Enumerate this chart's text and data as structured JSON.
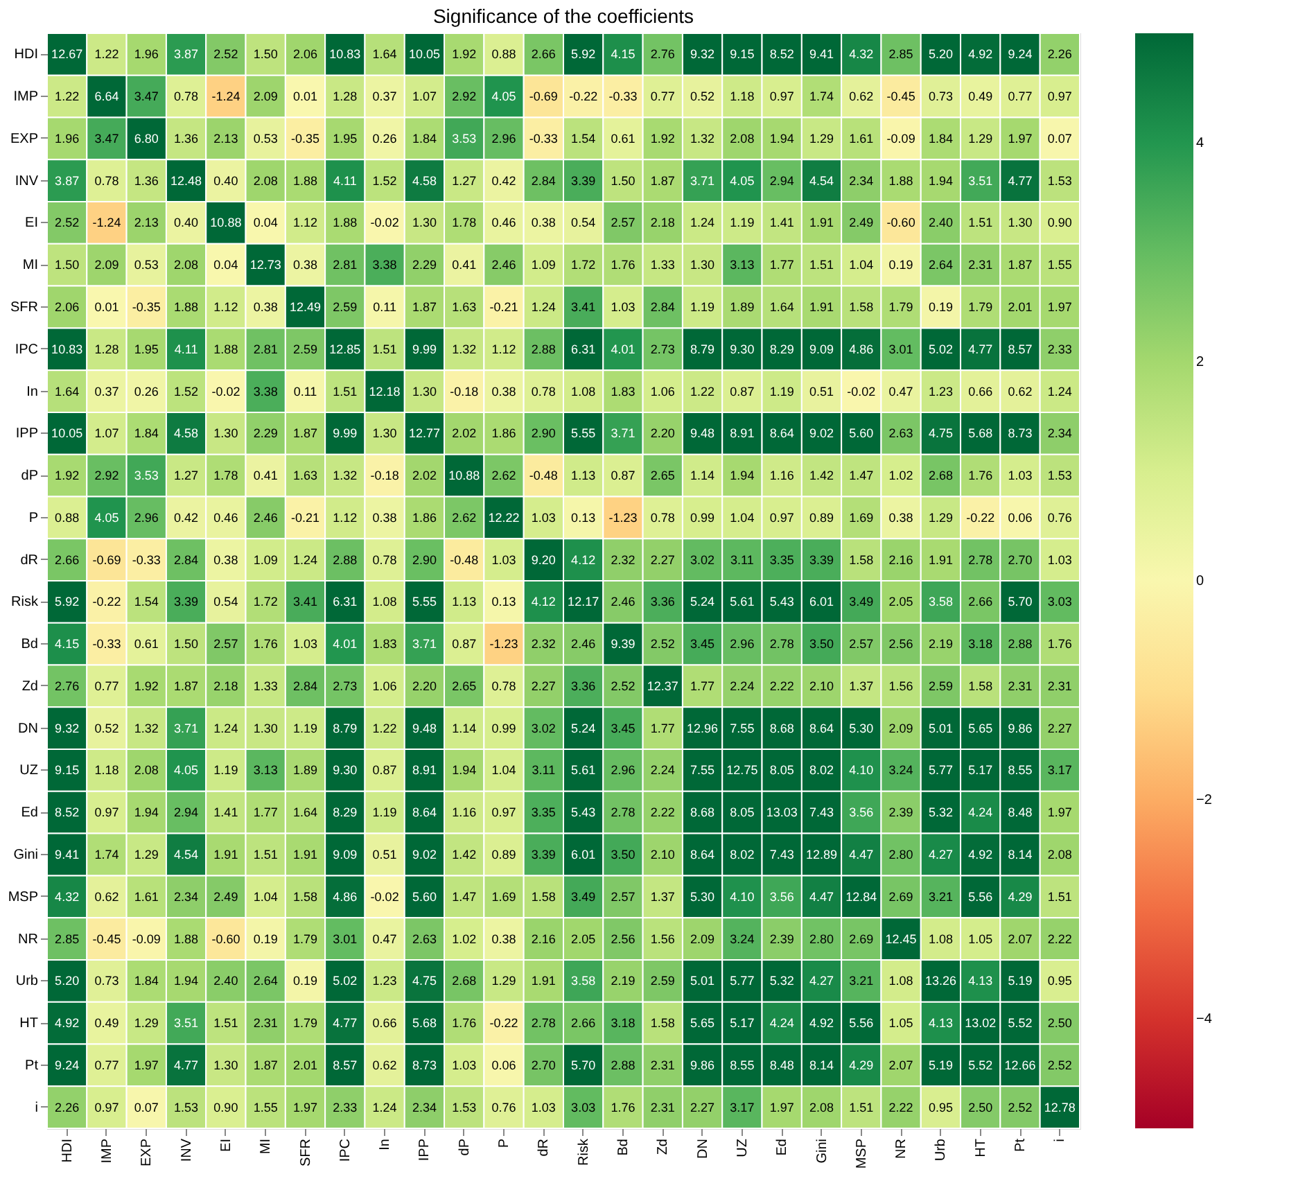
{
  "chart_data": {
    "type": "heatmap",
    "title": "Significance of the coefficients",
    "categories": [
      "HDI",
      "IMP",
      "EXP",
      "INV",
      "EI",
      "MI",
      "SFR",
      "IPC",
      "In",
      "IPP",
      "dP",
      "P",
      "dR",
      "Risk",
      "Bd",
      "Zd",
      "DN",
      "UZ",
      "Ed",
      "Gini",
      "MSP",
      "NR",
      "Urb",
      "HT",
      "Pt",
      "i"
    ],
    "y_categories": [
      "HDI",
      "IMP",
      "EXP",
      "INV",
      "EI",
      "MI",
      "SFR",
      "IPC",
      "In",
      "IPP",
      "dP",
      "P",
      "dR",
      "Risk",
      "Bd",
      "Zd",
      "DN",
      "UZ",
      "Ed",
      "Gini",
      "MSP",
      "NR",
      "Urb",
      "HT",
      "Pt",
      "i"
    ],
    "cells": [
      [
        12.67,
        1.22,
        1.96,
        3.87,
        2.52,
        1.5,
        2.06,
        10.83,
        1.64,
        10.05,
        1.92,
        0.88,
        2.66,
        5.92,
        4.15,
        2.76,
        9.32,
        9.15,
        8.52,
        9.41,
        4.32,
        2.85,
        5.2,
        4.92,
        9.24,
        2.26
      ],
      [
        1.22,
        6.64,
        3.47,
        0.78,
        -1.24,
        2.09,
        0.01,
        1.28,
        0.37,
        1.07,
        2.92,
        4.05,
        -0.69,
        -0.22,
        -0.33,
        0.77,
        0.52,
        1.18,
        0.97,
        1.74,
        0.62,
        -0.45,
        0.73,
        0.49,
        0.77,
        0.97
      ],
      [
        1.96,
        3.47,
        6.8,
        1.36,
        2.13,
        0.53,
        -0.35,
        1.95,
        0.26,
        1.84,
        3.53,
        2.96,
        -0.33,
        1.54,
        0.61,
        1.92,
        1.32,
        2.08,
        1.94,
        1.29,
        1.61,
        -0.09,
        1.84,
        1.29,
        1.97,
        0.07
      ],
      [
        3.87,
        0.78,
        1.36,
        12.48,
        0.4,
        2.08,
        1.88,
        4.11,
        1.52,
        4.58,
        1.27,
        0.42,
        2.84,
        3.39,
        1.5,
        1.87,
        3.71,
        4.05,
        2.94,
        4.54,
        2.34,
        1.88,
        1.94,
        3.51,
        4.77,
        1.53
      ],
      [
        2.52,
        -1.24,
        2.13,
        0.4,
        10.88,
        0.04,
        1.12,
        1.88,
        -0.02,
        1.3,
        1.78,
        0.46,
        0.38,
        0.54,
        2.57,
        2.18,
        1.24,
        1.19,
        1.41,
        1.91,
        2.49,
        -0.6,
        2.4,
        1.51,
        1.3,
        0.9
      ],
      [
        1.5,
        2.09,
        0.53,
        2.08,
        0.04,
        12.73,
        0.38,
        2.81,
        3.38,
        2.29,
        0.41,
        2.46,
        1.09,
        1.72,
        1.76,
        1.33,
        1.3,
        3.13,
        1.77,
        1.51,
        1.04,
        0.19,
        2.64,
        2.31,
        1.87,
        1.55
      ],
      [
        2.06,
        0.01,
        -0.35,
        1.88,
        1.12,
        0.38,
        12.49,
        2.59,
        0.11,
        1.87,
        1.63,
        -0.21,
        1.24,
        3.41,
        1.03,
        2.84,
        1.19,
        1.89,
        1.64,
        1.91,
        1.58,
        1.79,
        0.19,
        1.79,
        2.01,
        1.97
      ],
      [
        10.83,
        1.28,
        1.95,
        4.11,
        1.88,
        2.81,
        2.59,
        12.85,
        1.51,
        9.99,
        1.32,
        1.12,
        2.88,
        6.31,
        4.01,
        2.73,
        8.79,
        9.3,
        8.29,
        9.09,
        4.86,
        3.01,
        5.02,
        4.77,
        8.57,
        2.33
      ],
      [
        1.64,
        0.37,
        0.26,
        1.52,
        -0.02,
        3.38,
        0.11,
        1.51,
        12.18,
        1.3,
        -0.18,
        0.38,
        0.78,
        1.08,
        1.83,
        1.06,
        1.22,
        0.87,
        1.19,
        0.51,
        -0.02,
        0.47,
        1.23,
        0.66,
        0.62,
        1.24
      ],
      [
        10.05,
        1.07,
        1.84,
        4.58,
        1.3,
        2.29,
        1.87,
        9.99,
        1.3,
        12.77,
        2.02,
        1.86,
        2.9,
        5.55,
        3.71,
        2.2,
        9.48,
        8.91,
        8.64,
        9.02,
        5.6,
        2.63,
        4.75,
        5.68,
        8.73,
        2.34
      ],
      [
        1.92,
        2.92,
        3.53,
        1.27,
        1.78,
        0.41,
        1.63,
        1.32,
        -0.18,
        2.02,
        10.88,
        2.62,
        -0.48,
        1.13,
        0.87,
        2.65,
        1.14,
        1.94,
        1.16,
        1.42,
        1.47,
        1.02,
        2.68,
        1.76,
        1.03,
        1.53
      ],
      [
        0.88,
        4.05,
        2.96,
        0.42,
        0.46,
        2.46,
        -0.21,
        1.12,
        0.38,
        1.86,
        2.62,
        12.22,
        1.03,
        0.13,
        -1.23,
        0.78,
        0.99,
        1.04,
        0.97,
        0.89,
        1.69,
        0.38,
        1.29,
        -0.22,
        0.06,
        0.76
      ],
      [
        2.66,
        -0.69,
        -0.33,
        2.84,
        0.38,
        1.09,
        1.24,
        2.88,
        0.78,
        2.9,
        -0.48,
        1.03,
        9.2,
        4.12,
        2.32,
        2.27,
        3.02,
        3.11,
        3.35,
        3.39,
        1.58,
        2.16,
        1.91,
        2.78,
        2.7,
        1.03
      ],
      [
        5.92,
        -0.22,
        1.54,
        3.39,
        0.54,
        1.72,
        3.41,
        6.31,
        1.08,
        5.55,
        1.13,
        0.13,
        4.12,
        12.17,
        2.46,
        3.36,
        5.24,
        5.61,
        5.43,
        6.01,
        3.49,
        2.05,
        3.58,
        2.66,
        5.7,
        3.03
      ],
      [
        4.15,
        -0.33,
        0.61,
        1.5,
        2.57,
        1.76,
        1.03,
        4.01,
        1.83,
        3.71,
        0.87,
        -1.23,
        2.32,
        2.46,
        9.39,
        2.52,
        3.45,
        2.96,
        2.78,
        3.5,
        2.57,
        2.56,
        2.19,
        3.18,
        2.88,
        1.76
      ],
      [
        2.76,
        0.77,
        1.92,
        1.87,
        2.18,
        1.33,
        2.84,
        2.73,
        1.06,
        2.2,
        2.65,
        0.78,
        2.27,
        3.36,
        2.52,
        12.37,
        1.77,
        2.24,
        2.22,
        2.1,
        1.37,
        1.56,
        2.59,
        1.58,
        2.31,
        2.31
      ],
      [
        9.32,
        0.52,
        1.32,
        3.71,
        1.24,
        1.3,
        1.19,
        8.79,
        1.22,
        9.48,
        1.14,
        0.99,
        3.02,
        5.24,
        3.45,
        1.77,
        12.96,
        7.55,
        8.68,
        8.64,
        5.3,
        2.09,
        5.01,
        5.65,
        9.86,
        2.27
      ],
      [
        9.15,
        1.18,
        2.08,
        4.05,
        1.19,
        3.13,
        1.89,
        9.3,
        0.87,
        8.91,
        1.94,
        1.04,
        3.11,
        5.61,
        2.96,
        2.24,
        7.55,
        12.75,
        8.05,
        8.02,
        4.1,
        3.24,
        5.77,
        5.17,
        8.55,
        3.17
      ],
      [
        8.52,
        0.97,
        1.94,
        2.94,
        1.41,
        1.77,
        1.64,
        8.29,
        1.19,
        8.64,
        1.16,
        0.97,
        3.35,
        5.43,
        2.78,
        2.22,
        8.68,
        8.05,
        13.03,
        7.43,
        3.56,
        2.39,
        5.32,
        4.24,
        8.48,
        1.97
      ],
      [
        9.41,
        1.74,
        1.29,
        4.54,
        1.91,
        1.51,
        1.91,
        9.09,
        0.51,
        9.02,
        1.42,
        0.89,
        3.39,
        6.01,
        3.5,
        2.1,
        8.64,
        8.02,
        7.43,
        12.89,
        4.47,
        2.8,
        4.27,
        4.92,
        8.14,
        2.08
      ],
      [
        4.32,
        0.62,
        1.61,
        2.34,
        2.49,
        1.04,
        1.58,
        4.86,
        -0.02,
        5.6,
        1.47,
        1.69,
        1.58,
        3.49,
        2.57,
        1.37,
        5.3,
        4.1,
        3.56,
        4.47,
        12.84,
        2.69,
        3.21,
        5.56,
        4.29,
        1.51
      ],
      [
        2.85,
        -0.45,
        -0.09,
        1.88,
        -0.6,
        0.19,
        1.79,
        3.01,
        0.47,
        2.63,
        1.02,
        0.38,
        2.16,
        2.05,
        2.56,
        1.56,
        2.09,
        3.24,
        2.39,
        2.8,
        2.69,
        12.45,
        1.08,
        1.05,
        2.07,
        2.22
      ],
      [
        5.2,
        0.73,
        1.84,
        1.94,
        2.4,
        2.64,
        0.19,
        5.02,
        1.23,
        4.75,
        2.68,
        1.29,
        1.91,
        3.58,
        2.19,
        2.59,
        5.01,
        5.77,
        5.32,
        4.27,
        3.21,
        1.08,
        13.26,
        4.13,
        5.19,
        0.95
      ],
      [
        4.92,
        0.49,
        1.29,
        3.51,
        1.51,
        2.31,
        1.79,
        4.77,
        0.66,
        5.68,
        1.76,
        -0.22,
        2.78,
        2.66,
        3.18,
        1.58,
        5.65,
        5.17,
        4.24,
        4.92,
        5.56,
        1.05,
        4.13,
        13.02,
        5.52,
        2.5
      ],
      [
        9.24,
        0.77,
        1.97,
        4.77,
        1.3,
        1.87,
        2.01,
        8.57,
        0.62,
        8.73,
        1.03,
        0.06,
        2.7,
        5.7,
        2.88,
        2.31,
        9.86,
        8.55,
        8.48,
        8.14,
        4.29,
        2.07,
        5.19,
        5.52,
        12.66,
        2.52
      ],
      [
        2.26,
        0.97,
        0.07,
        1.53,
        0.9,
        1.55,
        1.97,
        2.33,
        1.24,
        2.34,
        1.53,
        0.76,
        1.03,
        3.03,
        1.76,
        2.31,
        2.27,
        3.17,
        1.97,
        2.08,
        1.51,
        2.22,
        0.95,
        2.5,
        2.52,
        12.78
      ]
    ],
    "cell_labels": [
      [
        "12.67",
        "1.22",
        "1.96",
        "3.87",
        "2.52",
        "1.50",
        "2.06",
        "10.83",
        "1.64",
        "10.05",
        "1.92",
        "0.88",
        "2.66",
        "5.92",
        "4.15",
        "2.76",
        "9.32",
        "9.15",
        "8.52",
        "9.41",
        "4.32",
        "2.85",
        "5.20",
        "4.92",
        "9.24",
        "2.26"
      ],
      [
        "1.22",
        "6.64",
        "3.47",
        "0.78",
        "-1.24",
        "2.09",
        "0.01",
        "1.28",
        "0.37",
        "1.07",
        "2.92",
        "4.05",
        "-0.69",
        "-0.22",
        "-0.33",
        "0.77",
        "0.52",
        "1.18",
        "0.97",
        "1.74",
        "0.62",
        "-0.45",
        "0.73",
        "0.49",
        "0.77",
        "0.97"
      ],
      [
        "1.96",
        "3.47",
        "6.80",
        "1.36",
        "2.13",
        "0.53",
        "-0.35",
        "1.95",
        "0.26",
        "1.84",
        "3.53",
        "2.96",
        "-0.33",
        "1.54",
        "0.61",
        "1.92",
        "1.32",
        "2.08",
        "1.94",
        "1.29",
        "1.61",
        "-0.09",
        "1.84",
        "1.29",
        "1.97",
        "0.07"
      ],
      [
        "3.87",
        "0.78",
        "1.36",
        "12.48",
        "0.40",
        "2.08",
        "1.88",
        "4.11",
        "1.52",
        "4.58",
        "1.27",
        "0.42",
        "2.84",
        "3.39",
        "1.50",
        "1.87",
        "3.71",
        "4.05",
        "2.94",
        "4.54",
        "2.34",
        "1.88",
        "1.94",
        "3.51",
        "4.77",
        "1.53"
      ],
      [
        "2.52",
        "-1.24",
        "2.13",
        "0.40",
        "10.88",
        "0.04",
        "1.12",
        "1.88",
        "-0.02",
        "1.30",
        "1.78",
        "0.46",
        "0.38",
        "0.54",
        "2.57",
        "2.18",
        "1.24",
        "1.19",
        "1.41",
        "1.91",
        "2.49",
        "-0.60",
        "2.40",
        "1.51",
        "1.30",
        "0.90"
      ],
      [
        "1.50",
        "2.09",
        "0.53",
        "2.08",
        "0.04",
        "12.73",
        "0.38",
        "2.81",
        "3.38",
        "2.29",
        "0.41",
        "2.46",
        "1.09",
        "1.72",
        "1.76",
        "1.33",
        "1.30",
        "3.13",
        "1.77",
        "1.51",
        "1.04",
        "0.19",
        "2.64",
        "2.31",
        "1.87",
        "1.55"
      ],
      [
        "2.06",
        "0.01",
        "-0.35",
        "1.88",
        "1.12",
        "0.38",
        "12.49",
        "2.59",
        "0.11",
        "1.87",
        "1.63",
        "-0.21",
        "1.24",
        "3.41",
        "1.03",
        "2.84",
        "1.19",
        "1.89",
        "1.64",
        "1.91",
        "1.58",
        "1.79",
        "0.19",
        "1.79",
        "2.01",
        "1.97"
      ],
      [
        "10.83",
        "1.28",
        "1.95",
        "4.11",
        "1.88",
        "2.81",
        "2.59",
        "12.85",
        "1.51",
        "9.99",
        "1.32",
        "1.12",
        "2.88",
        "6.31",
        "4.01",
        "2.73",
        "8.79",
        "9.30",
        "8.29",
        "9.09",
        "4.86",
        "3.01",
        "5.02",
        "4.77",
        "8.57",
        "2.33"
      ],
      [
        "1.64",
        "0.37",
        "0.26",
        "1.52",
        "-0.02",
        "3.38",
        "0.11",
        "1.51",
        "12.18",
        "1.30",
        "-0.18",
        "0.38",
        "0.78",
        "1.08",
        "1.83",
        "1.06",
        "1.22",
        "0.87",
        "1.19",
        "0.51",
        "-0.02",
        "0.47",
        "1.23",
        "0.66",
        "0.62",
        "1.24"
      ],
      [
        "10.05",
        "1.07",
        "1.84",
        "4.58",
        "1.30",
        "2.29",
        "1.87",
        "9.99",
        "1.30",
        "12.77",
        "2.02",
        "1.86",
        "2.90",
        "5.55",
        "3.71",
        "2.20",
        "9.48",
        "8.91",
        "8.64",
        "9.02",
        "5.60",
        "2.63",
        "4.75",
        "5.68",
        "8.73",
        "2.34"
      ],
      [
        "1.92",
        "2.92",
        "3.53",
        "1.27",
        "1.78",
        "0.41",
        "1.63",
        "1.32",
        "-0.18",
        "2.02",
        "10.88",
        "2.62",
        "-0.48",
        "1.13",
        "0.87",
        "2.65",
        "1.14",
        "1.94",
        "1.16",
        "1.42",
        "1.47",
        "1.02",
        "2.68",
        "1.76",
        "1.03",
        "1.53"
      ],
      [
        "0.88",
        "4.05",
        "2.96",
        "0.42",
        "0.46",
        "2.46",
        "-0.21",
        "1.12",
        "0.38",
        "1.86",
        "2.62",
        "12.22",
        "1.03",
        "0.13",
        "-1.23",
        "0.78",
        "0.99",
        "1.04",
        "0.97",
        "0.89",
        "1.69",
        "0.38",
        "1.29",
        "-0.22",
        "0.06",
        "0.76"
      ],
      [
        "2.66",
        "-0.69",
        "-0.33",
        "2.84",
        "0.38",
        "1.09",
        "1.24",
        "2.88",
        "0.78",
        "2.90",
        "-0.48",
        "1.03",
        "9.20",
        "4.12",
        "2.32",
        "2.27",
        "3.02",
        "3.11",
        "3.35",
        "3.39",
        "1.58",
        "2.16",
        "1.91",
        "2.78",
        "2.70",
        "1.03"
      ],
      [
        "5.92",
        "-0.22",
        "1.54",
        "3.39",
        "0.54",
        "1.72",
        "3.41",
        "6.31",
        "1.08",
        "5.55",
        "1.13",
        "0.13",
        "4.12",
        "12.17",
        "2.46",
        "3.36",
        "5.24",
        "5.61",
        "5.43",
        "6.01",
        "3.49",
        "2.05",
        "3.58",
        "2.66",
        "5.70",
        "3.03"
      ],
      [
        "4.15",
        "-0.33",
        "0.61",
        "1.50",
        "2.57",
        "1.76",
        "1.03",
        "4.01",
        "1.83",
        "3.71",
        "0.87",
        "-1.23",
        "2.32",
        "2.46",
        "9.39",
        "2.52",
        "3.45",
        "2.96",
        "2.78",
        "3.50",
        "2.57",
        "2.56",
        "2.19",
        "3.18",
        "2.88",
        "1.76"
      ],
      [
        "2.76",
        "0.77",
        "1.92",
        "1.87",
        "2.18",
        "1.33",
        "2.84",
        "2.73",
        "1.06",
        "2.20",
        "2.65",
        "0.78",
        "2.27",
        "3.36",
        "2.52",
        "12.37",
        "1.77",
        "2.24",
        "2.22",
        "2.10",
        "1.37",
        "1.56",
        "2.59",
        "1.58",
        "2.31",
        "2.31"
      ],
      [
        "9.32",
        "0.52",
        "1.32",
        "3.71",
        "1.24",
        "1.30",
        "1.19",
        "8.79",
        "1.22",
        "9.48",
        "1.14",
        "0.99",
        "3.02",
        "5.24",
        "3.45",
        "1.77",
        "12.96",
        "7.55",
        "8.68",
        "8.64",
        "5.30",
        "2.09",
        "5.01",
        "5.65",
        "9.86",
        "2.27"
      ],
      [
        "9.15",
        "1.18",
        "2.08",
        "4.05",
        "1.19",
        "3.13",
        "1.89",
        "9.30",
        "0.87",
        "8.91",
        "1.94",
        "1.04",
        "3.11",
        "5.61",
        "2.96",
        "2.24",
        "7.55",
        "12.75",
        "8.05",
        "8.02",
        "4.10",
        "3.24",
        "5.77",
        "5.17",
        "8.55",
        "3.17"
      ],
      [
        "8.52",
        "0.97",
        "1.94",
        "2.94",
        "1.41",
        "1.77",
        "1.64",
        "8.29",
        "1.19",
        "8.64",
        "1.16",
        "0.97",
        "3.35",
        "5.43",
        "2.78",
        "2.22",
        "8.68",
        "8.05",
        "13.03",
        "7.43",
        "3.56",
        "2.39",
        "5.32",
        "4.24",
        "8.48",
        "1.97"
      ],
      [
        "9.41",
        "1.74",
        "1.29",
        "4.54",
        "1.91",
        "1.51",
        "1.91",
        "9.09",
        "0.51",
        "9.02",
        "1.42",
        "0.89",
        "3.39",
        "6.01",
        "3.50",
        "2.10",
        "8.64",
        "8.02",
        "7.43",
        "12.89",
        "4.47",
        "2.80",
        "4.27",
        "4.92",
        "8.14",
        "2.08"
      ],
      [
        "4.32",
        "0.62",
        "1.61",
        "2.34",
        "2.49",
        "1.04",
        "1.58",
        "4.86",
        "-0.02",
        "5.60",
        "1.47",
        "1.69",
        "1.58",
        "3.49",
        "2.57",
        "1.37",
        "5.30",
        "4.10",
        "3.56",
        "4.47",
        "12.84",
        "2.69",
        "3.21",
        "5.56",
        "4.29",
        "1.51"
      ],
      [
        "2.85",
        "-0.45",
        "-0.09",
        "1.88",
        "-0.60",
        "0.19",
        "1.79",
        "3.01",
        "0.47",
        "2.63",
        "1.02",
        "0.38",
        "2.16",
        "2.05",
        "2.56",
        "1.56",
        "2.09",
        "3.24",
        "2.39",
        "2.80",
        "2.69",
        "12.45",
        "1.08",
        "1.05",
        "2.07",
        "2.22"
      ],
      [
        "5.20",
        "0.73",
        "1.84",
        "1.94",
        "2.40",
        "2.64",
        "0.19",
        "5.02",
        "1.23",
        "4.75",
        "2.68",
        "1.29",
        "1.91",
        "3.58",
        "2.19",
        "2.59",
        "5.01",
        "5.77",
        "5.32",
        "4.27",
        "3.21",
        "1.08",
        "13.26",
        "4.13",
        "5.19",
        "0.95"
      ],
      [
        "4.92",
        "0.49",
        "1.29",
        "3.51",
        "1.51",
        "2.31",
        "1.79",
        "4.77",
        "0.66",
        "5.68",
        "1.76",
        "-0.22",
        "2.78",
        "2.66",
        "3.18",
        "1.58",
        "5.65",
        "5.17",
        "4.24",
        "4.92",
        "5.56",
        "1.05",
        "4.13",
        "13.02",
        "5.52",
        "2.50"
      ],
      [
        "9.24",
        "0.77",
        "1.97",
        "4.77",
        "1.30",
        "1.87",
        "2.01",
        "8.57",
        "0.62",
        "8.73",
        "1.03",
        "0.06",
        "2.70",
        "5.70",
        "2.88",
        "2.31",
        "9.86",
        "8.55",
        "8.48",
        "8.14",
        "4.29",
        "2.07",
        "5.19",
        "5.52",
        "12.66",
        "2.52"
      ],
      [
        "2.26",
        "0.97",
        "0.07",
        "1.53",
        "0.90",
        "1.55",
        "1.97",
        "2.33",
        "1.24",
        "2.34",
        "1.53",
        "0.76",
        "1.03",
        "3.03",
        "1.76",
        "2.31",
        "2.27",
        "3.17",
        "1.97",
        "2.08",
        "1.51",
        "2.22",
        "0.95",
        "2.50",
        "2.52",
        "12.78"
      ]
    ],
    "clim": [
      -5,
      5
    ],
    "cticks": [
      4,
      2,
      0,
      -2,
      -4
    ]
  }
}
